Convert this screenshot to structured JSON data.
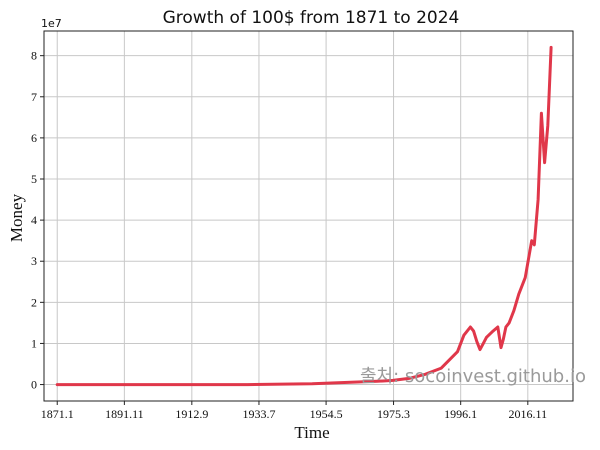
{
  "chart_data": {
    "type": "line",
    "title": "Growth of 100$ from 1871 to 2024",
    "xlabel": "Time",
    "ylabel": "Money",
    "y_offset_label": "1e7",
    "xlim": [
      1866.9,
      2030.8
    ],
    "ylim": [
      -0.4,
      8.6
    ],
    "x_ticks": [
      {
        "value": 1871.0,
        "label": "1871.1"
      },
      {
        "value": 1891.8,
        "label": "1891.11"
      },
      {
        "value": 1912.7,
        "label": "1912.9"
      },
      {
        "value": 1933.5,
        "label": "1933.7"
      },
      {
        "value": 1954.3,
        "label": "1954.5"
      },
      {
        "value": 1975.2,
        "label": "1975.3"
      },
      {
        "value": 1996.0,
        "label": "1996.1"
      },
      {
        "value": 2016.8,
        "label": "2016.11"
      }
    ],
    "y_ticks": [
      {
        "value": 0,
        "label": "0"
      },
      {
        "value": 1,
        "label": "1"
      },
      {
        "value": 2,
        "label": "2"
      },
      {
        "value": 3,
        "label": "3"
      },
      {
        "value": 4,
        "label": "4"
      },
      {
        "value": 5,
        "label": "5"
      },
      {
        "value": 6,
        "label": "6"
      },
      {
        "value": 7,
        "label": "7"
      },
      {
        "value": 8,
        "label": "8"
      }
    ],
    "grid": true,
    "series": [
      {
        "color": "#e0374a",
        "x": [
          1871.0,
          1900.0,
          1930.0,
          1950.0,
          1960.0,
          1970.0,
          1975.0,
          1980.0,
          1985.0,
          1990.0,
          1995.0,
          1997.0,
          1999.0,
          2000.0,
          2001.0,
          2002.0,
          2003.0,
          2004.0,
          2006.0,
          2007.5,
          2008.5,
          2009.2,
          2010.0,
          2011.0,
          2012.5,
          2014.0,
          2016.0,
          2018.0,
          2018.8,
          2020.0,
          2021.0,
          2022.0,
          2023.0,
          2024.0
        ],
        "y": [
          0.0,
          0.0,
          0.0,
          0.02,
          0.05,
          0.08,
          0.1,
          0.15,
          0.25,
          0.4,
          0.8,
          1.2,
          1.4,
          1.3,
          1.05,
          0.85,
          1.0,
          1.15,
          1.3,
          1.4,
          0.9,
          1.1,
          1.4,
          1.5,
          1.8,
          2.2,
          2.6,
          3.5,
          3.4,
          4.5,
          6.6,
          5.4,
          6.3,
          8.2
        ]
      }
    ]
  },
  "watermark": "출처: socoinvest.github.io"
}
